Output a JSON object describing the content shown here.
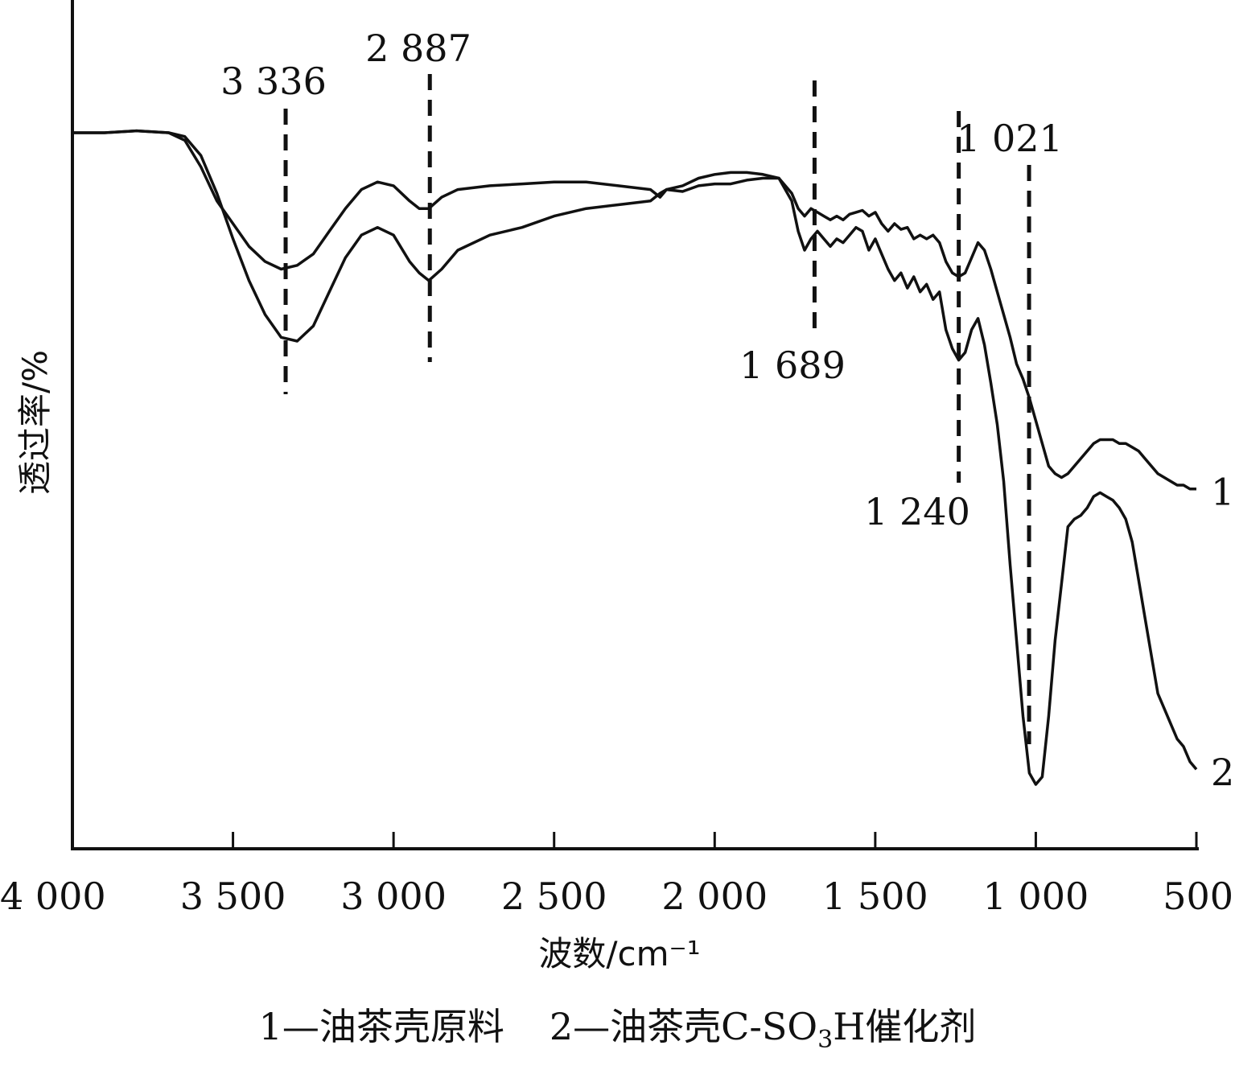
{
  "chart_data": {
    "type": "line",
    "xlabel": "波数/cm⁻¹",
    "ylabel": "透过率/%",
    "xlim": [
      4000,
      500
    ],
    "x_reversed": true,
    "y_ticks_shown": false,
    "x_ticks": [
      {
        "value": 4000,
        "label": "4 000"
      },
      {
        "value": 3500,
        "label": "3 500"
      },
      {
        "value": 3000,
        "label": "3 000"
      },
      {
        "value": 2500,
        "label": "2 500"
      },
      {
        "value": 2000,
        "label": "2 000"
      },
      {
        "value": 1500,
        "label": "1 500"
      },
      {
        "value": 1000,
        "label": "1 000"
      },
      {
        "value": 500,
        "label": "500"
      }
    ],
    "peaks": [
      {
        "x": 3336,
        "label": "3 336"
      },
      {
        "x": 2887,
        "label": "2 887"
      },
      {
        "x": 1689,
        "label": "1 689"
      },
      {
        "x": 1240,
        "label": "1 240"
      },
      {
        "x": 1021,
        "label": "1 021"
      }
    ],
    "series": [
      {
        "name": "1",
        "x": [
          4000,
          3900,
          3800,
          3700,
          3650,
          3600,
          3550,
          3500,
          3450,
          3400,
          3350,
          3300,
          3250,
          3200,
          3150,
          3100,
          3050,
          3000,
          2950,
          2920,
          2890,
          2850,
          2800,
          2700,
          2600,
          2500,
          2400,
          2300,
          2200,
          2170,
          2150,
          2100,
          2050,
          2000,
          1950,
          1900,
          1850,
          1800,
          1760,
          1740,
          1720,
          1700,
          1680,
          1660,
          1640,
          1620,
          1600,
          1580,
          1560,
          1540,
          1520,
          1500,
          1480,
          1460,
          1440,
          1420,
          1400,
          1380,
          1360,
          1340,
          1320,
          1300,
          1280,
          1260,
          1240,
          1220,
          1200,
          1180,
          1160,
          1140,
          1120,
          1100,
          1080,
          1060,
          1040,
          1020,
          1000,
          980,
          960,
          940,
          920,
          900,
          880,
          860,
          840,
          820,
          800,
          780,
          760,
          740,
          720,
          700,
          680,
          660,
          640,
          620,
          600,
          580,
          560,
          540,
          520,
          500
        ],
        "y": [
          94,
          94,
          94.5,
          94,
          92,
          85,
          76,
          70,
          64,
          60,
          58,
          59,
          62,
          68,
          74,
          79,
          81,
          80,
          76,
          74,
          74,
          77,
          79,
          80,
          80.5,
          81,
          81,
          80,
          79,
          77,
          79,
          78.5,
          80,
          80.5,
          80.5,
          81.5,
          82,
          82,
          78,
          74,
          72,
          74,
          73,
          72,
          71,
          72,
          71,
          72.5,
          73,
          73.5,
          72,
          73,
          70,
          68,
          70,
          68.5,
          69,
          66,
          67,
          66,
          67,
          65,
          60,
          57,
          56,
          57,
          61,
          65,
          63,
          58,
          52,
          46,
          40,
          33,
          29,
          24,
          18,
          12,
          6,
          4,
          3,
          4,
          6,
          8,
          10,
          12,
          13,
          13,
          13,
          12,
          12,
          11,
          10,
          8,
          6,
          4,
          3,
          2,
          1,
          1,
          0,
          0
        ]
      },
      {
        "name": "2",
        "x": [
          4000,
          3900,
          3800,
          3700,
          3650,
          3600,
          3550,
          3500,
          3450,
          3400,
          3350,
          3300,
          3250,
          3200,
          3150,
          3100,
          3050,
          3000,
          2950,
          2920,
          2890,
          2850,
          2800,
          2700,
          2600,
          2500,
          2400,
          2300,
          2200,
          2170,
          2150,
          2100,
          2050,
          2000,
          1950,
          1900,
          1850,
          1800,
          1760,
          1740,
          1720,
          1700,
          1680,
          1660,
          1640,
          1620,
          1600,
          1580,
          1560,
          1540,
          1520,
          1500,
          1480,
          1460,
          1440,
          1420,
          1400,
          1380,
          1360,
          1340,
          1320,
          1300,
          1280,
          1260,
          1240,
          1220,
          1200,
          1180,
          1160,
          1140,
          1120,
          1100,
          1080,
          1060,
          1040,
          1020,
          1000,
          980,
          960,
          940,
          920,
          900,
          880,
          860,
          840,
          820,
          800,
          780,
          760,
          740,
          720,
          700,
          680,
          660,
          640,
          620,
          600,
          580,
          560,
          540,
          520,
          500
        ],
        "y": [
          94,
          94,
          94.5,
          94,
          93,
          88,
          78,
          66,
          55,
          46,
          40,
          39,
          43,
          52,
          61,
          67,
          69,
          67,
          60,
          57,
          55,
          58,
          63,
          67,
          69,
          72,
          74,
          75,
          76,
          78,
          79,
          80,
          82,
          83,
          83.5,
          83.5,
          83,
          82,
          76,
          68,
          63,
          66,
          68,
          66,
          64,
          66,
          65,
          67,
          69,
          68,
          63,
          66,
          62,
          58,
          55,
          57,
          53,
          56,
          52,
          54,
          50,
          52,
          42,
          37,
          34,
          36,
          42,
          45,
          38,
          28,
          17,
          2,
          -20,
          -40,
          -60,
          -75,
          -78,
          -76,
          -60,
          -40,
          -25,
          -10,
          -8,
          -7,
          -5,
          -2,
          -1,
          -2,
          -3,
          -5,
          -8,
          -14,
          -24,
          -34,
          -44,
          -54,
          -58,
          -62,
          -66,
          -68,
          -72,
          -74
        ]
      }
    ]
  },
  "caption": {
    "item1": "1—油茶壳原料",
    "item2_prefix": "2—油茶壳C-SO",
    "item2_sub": "3",
    "item2_suffix": "H催化剂"
  }
}
